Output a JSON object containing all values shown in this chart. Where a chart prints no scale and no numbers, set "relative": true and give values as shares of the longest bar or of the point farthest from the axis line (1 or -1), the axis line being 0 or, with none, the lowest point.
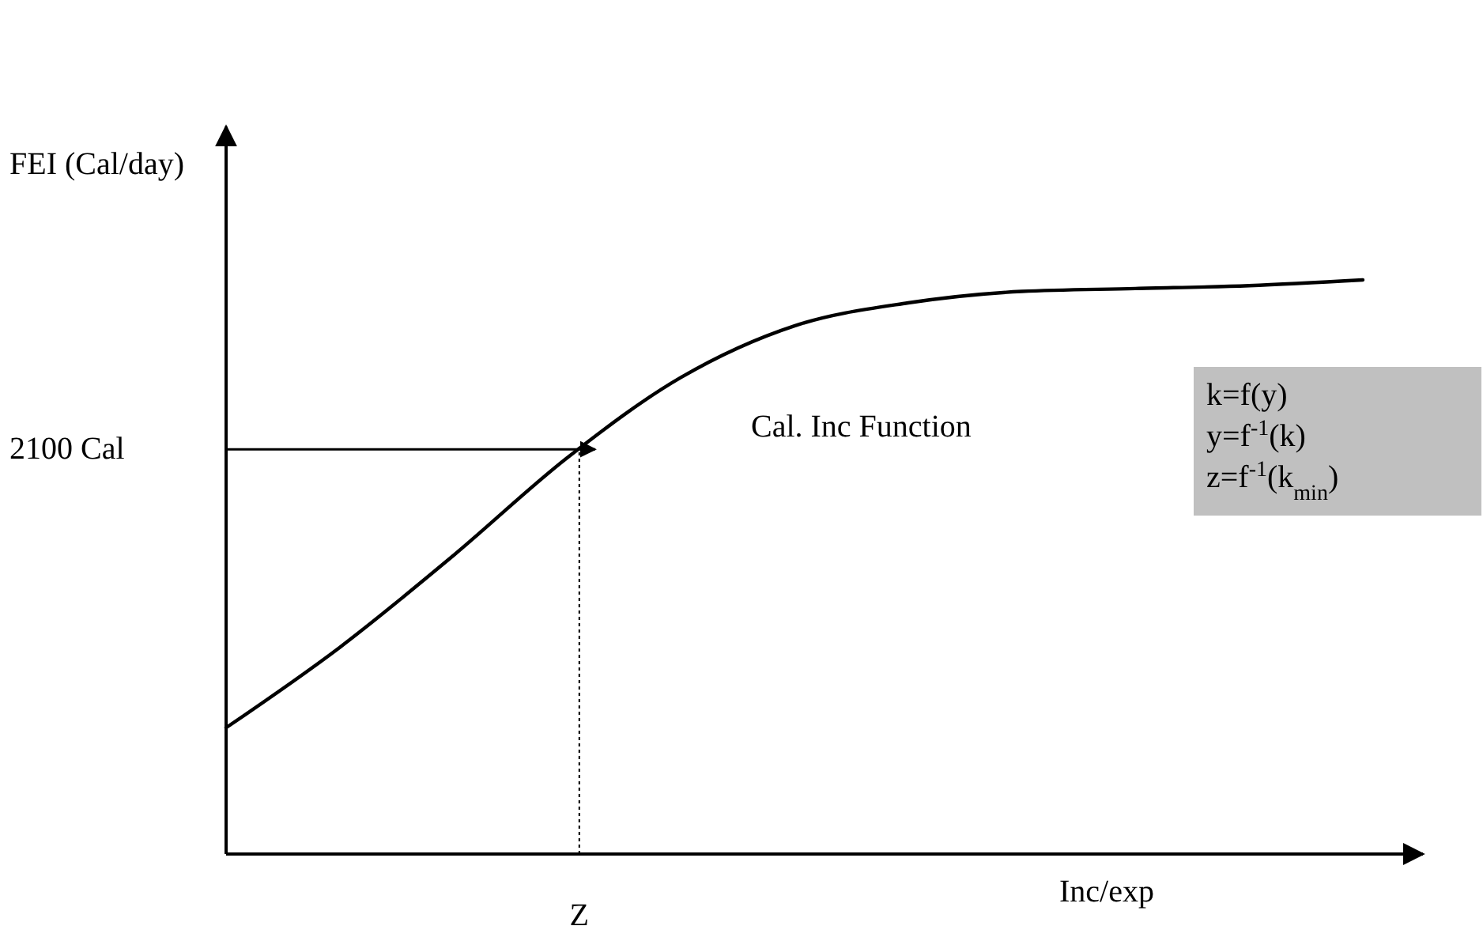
{
  "chart_data": {
    "type": "line",
    "relative": true,
    "xlabel": "Inc/exp",
    "ylabel": "FEI (Cal/day)",
    "categories": [
      null,
      null,
      null,
      null,
      null,
      null,
      null,
      null,
      null,
      null,
      null
    ],
    "series": [
      {
        "color": "#000000",
        "values": [
          0.22,
          0.36,
          0.52,
          0.69,
          0.83,
          0.92,
          0.96,
          0.98,
          0.985,
          0.99,
          1
        ]
      }
    ],
    "ref_lines": [
      {
        "axis": "y",
        "value": 0.705,
        "label": "2100 Cal",
        "line_style": "solid"
      }
    ],
    "annotations": [
      "Cal. Inc Function",
      "k=f(y)",
      "y=f$^{-1}$(k)",
      "z=f$^{-1}$(k$_{min}$)",
      "Z"
    ]
  }
}
